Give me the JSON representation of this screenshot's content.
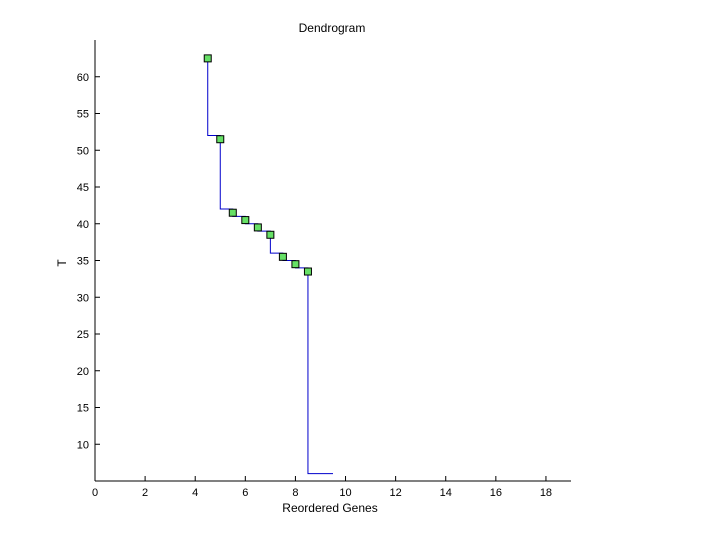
{
  "chart_data": {
    "type": "line",
    "chart_kind": "dendrogram",
    "title": "Dendrogram",
    "xlabel": "Reordered Genes",
    "ylabel": "T",
    "xlim": [
      0,
      19
    ],
    "ylim": [
      5,
      65
    ],
    "xticks": [
      0,
      2,
      4,
      6,
      8,
      10,
      12,
      14,
      16,
      18
    ],
    "yticks": [
      10,
      15,
      20,
      25,
      30,
      35,
      40,
      45,
      50,
      55,
      60
    ],
    "grid": false,
    "line_color": "#0000cc",
    "marker_color": "#66e066",
    "series": [
      {
        "x": [
          4.5,
          4.5,
          5.0,
          5.0,
          5.5,
          5.5,
          6.0,
          6.0,
          6.5,
          6.5,
          7.0,
          7.0,
          7.5,
          7.5,
          8.0,
          8.0,
          8.5,
          8.5,
          9.5
        ],
        "y": [
          62.5,
          52.0,
          52.0,
          42.0,
          42.0,
          41.0,
          41.0,
          40.0,
          40.0,
          39.0,
          39.0,
          36.0,
          36.0,
          35.0,
          35.0,
          34.0,
          34.0,
          6.0,
          6.0
        ]
      }
    ],
    "nodes": [
      {
        "x": 4.5,
        "y": 62.5
      },
      {
        "x": 5.0,
        "y": 51.5
      },
      {
        "x": 5.5,
        "y": 41.5
      },
      {
        "x": 6.0,
        "y": 40.5
      },
      {
        "x": 6.5,
        "y": 39.5
      },
      {
        "x": 7.0,
        "y": 38.5
      },
      {
        "x": 7.5,
        "y": 35.5
      },
      {
        "x": 8.0,
        "y": 34.5
      },
      {
        "x": 8.5,
        "y": 33.5
      }
    ]
  }
}
